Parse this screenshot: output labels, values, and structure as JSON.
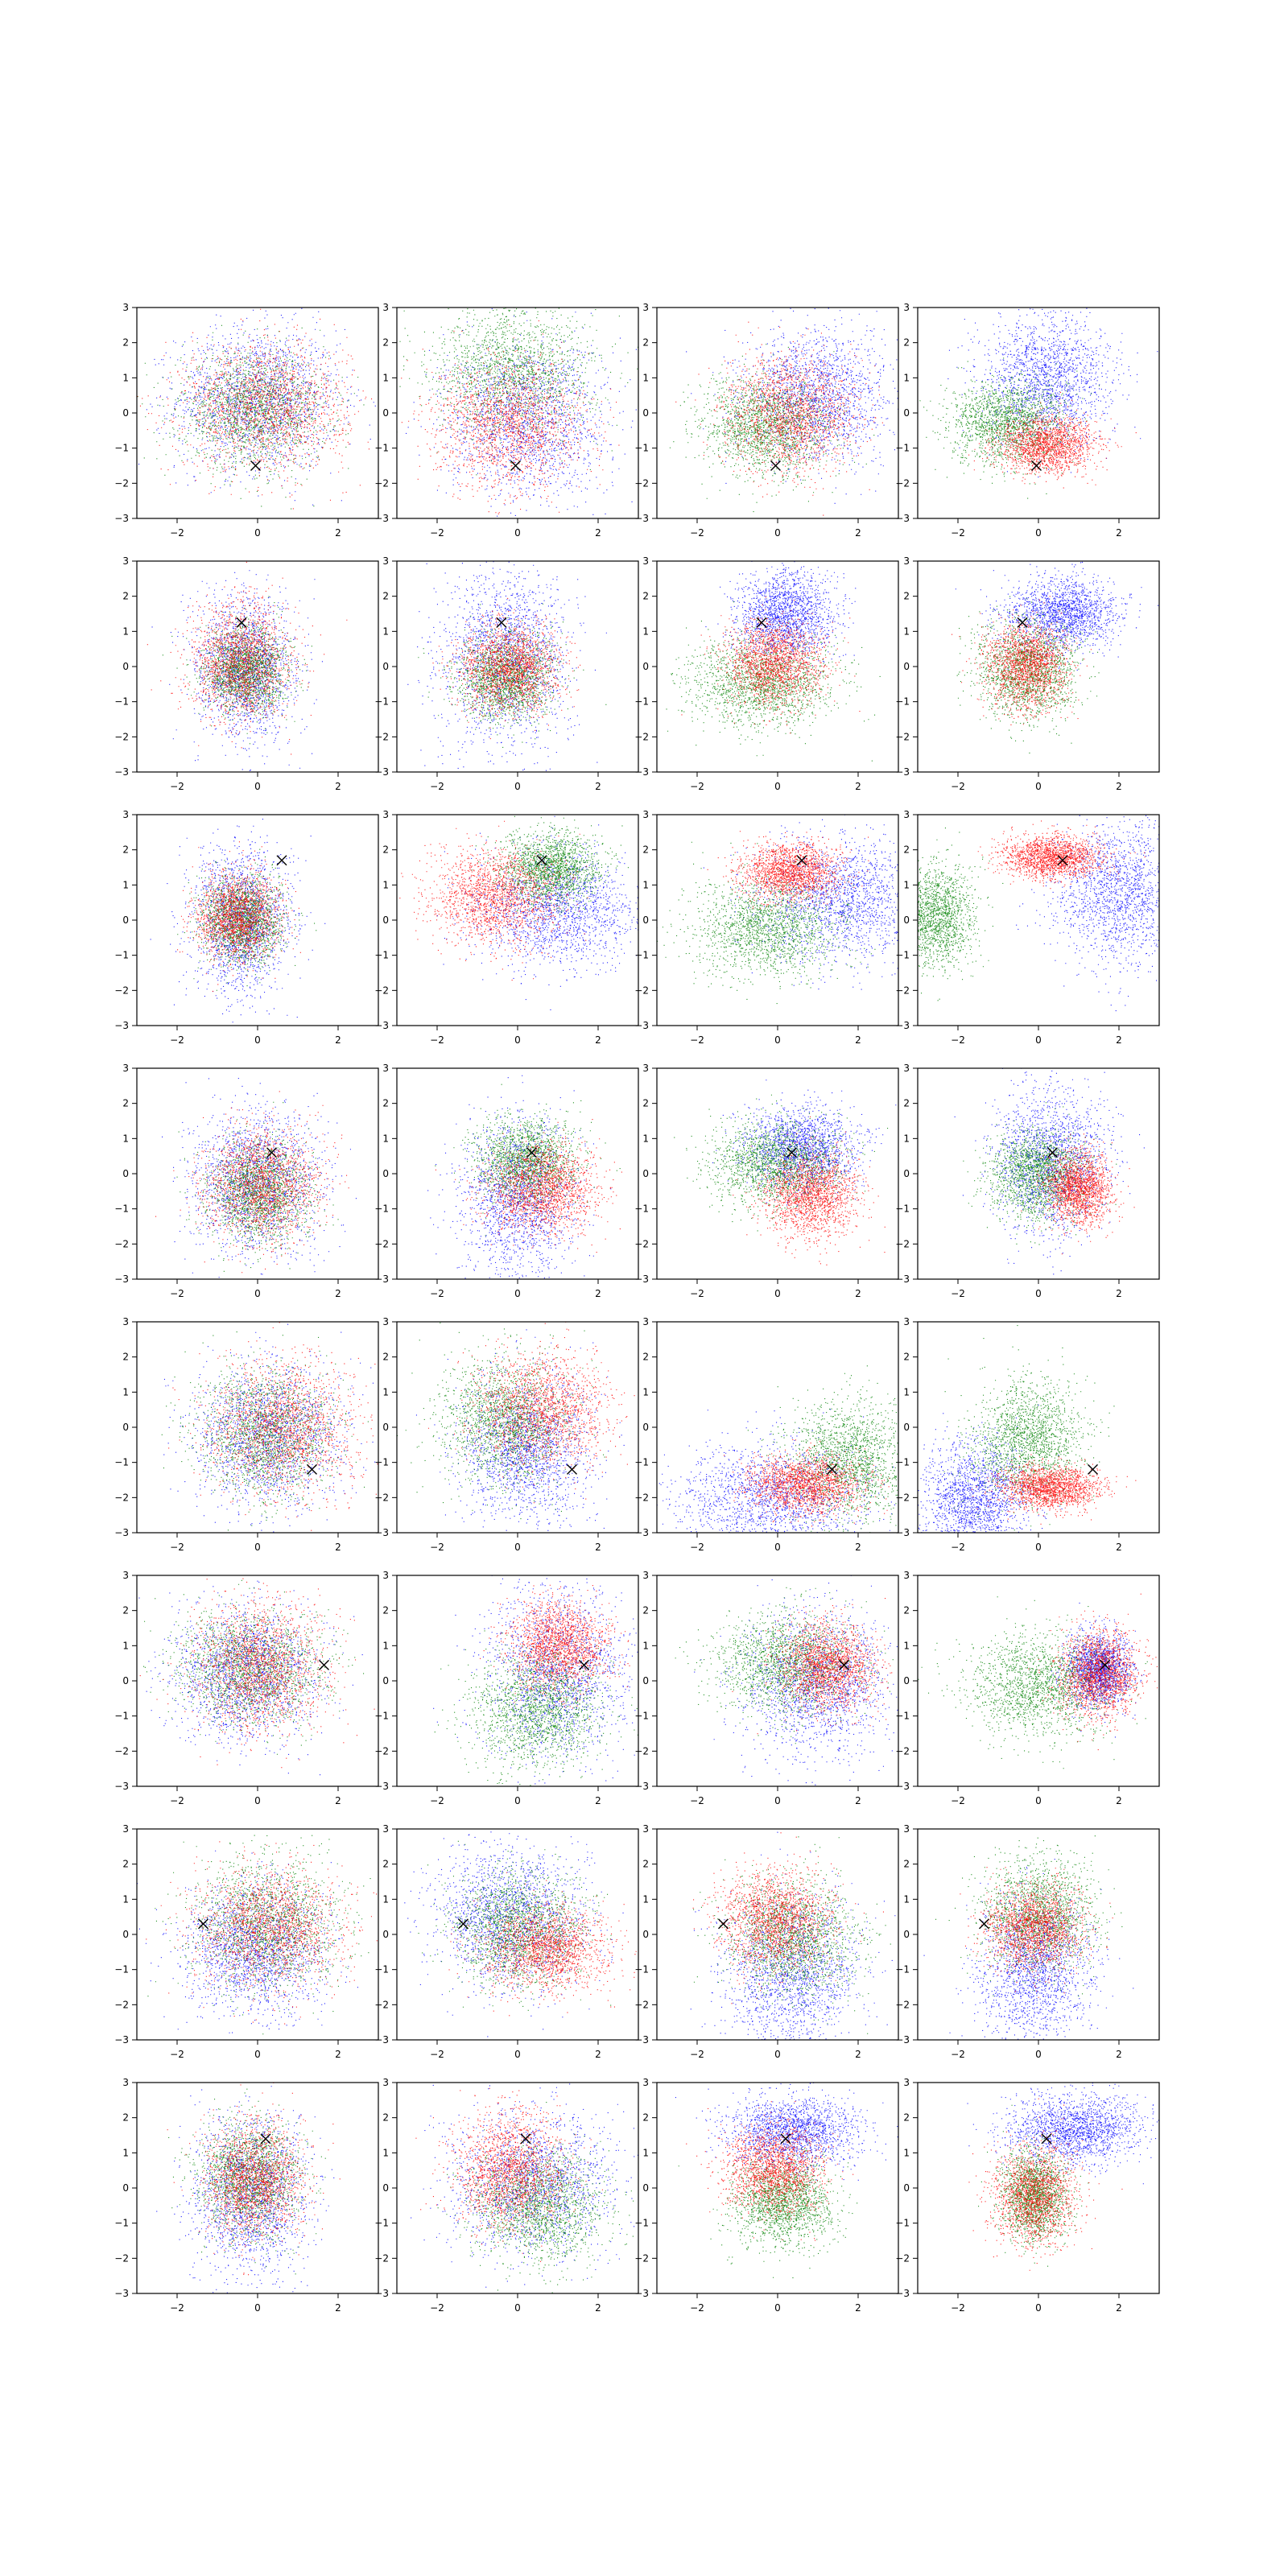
{
  "chart_data": {
    "type": "scatter",
    "layout": {
      "rows": 8,
      "cols": 4
    },
    "title": "",
    "xlabel": "",
    "ylabel": "",
    "grid": false,
    "legend": "none",
    "colors": {
      "blue": "#0000ff",
      "red": "#ff0000",
      "green": "#008000",
      "marker": "#000000"
    },
    "series_names": [
      "blue",
      "red",
      "green"
    ],
    "axes": {
      "xlim": [
        -3,
        3
      ],
      "ylim": [
        -3,
        3
      ],
      "xticks": [
        -2,
        0,
        2
      ],
      "yticks": [
        -3,
        -2,
        -1,
        0,
        1,
        2,
        3
      ],
      "xtick_labels": [
        "−2",
        "0",
        "2"
      ],
      "ytick_labels": [
        "−3",
        "−2",
        "−1",
        "0",
        "1",
        "2",
        "3"
      ]
    },
    "row_markers": [
      {
        "marker": [
          -0.05,
          -1.5
        ]
      },
      {
        "marker": [
          -0.4,
          1.25
        ]
      },
      {
        "marker": [
          0.6,
          1.7
        ]
      },
      {
        "marker": [
          0.35,
          0.6
        ]
      },
      {
        "marker": [
          1.35,
          -1.2
        ]
      },
      {
        "marker": [
          1.65,
          0.45
        ]
      },
      {
        "marker": [
          -1.35,
          0.3
        ]
      },
      {
        "marker": [
          0.2,
          1.4
        ]
      }
    ],
    "panels": [
      [
        {
          "blue": {
            "mean": [
              0.0,
              0.4
            ],
            "sd": [
              1.0,
              1.0
            ]
          },
          "red": {
            "mean": [
              0.2,
              0.2
            ],
            "sd": [
              1.0,
              0.9
            ]
          },
          "green": {
            "mean": [
              -0.1,
              0.1
            ],
            "sd": [
              0.9,
              0.8
            ]
          }
        },
        {
          "blue": {
            "mean": [
              0.2,
              -0.2
            ],
            "sd": [
              1.0,
              1.1
            ]
          },
          "red": {
            "mean": [
              -0.2,
              -0.3
            ],
            "sd": [
              0.9,
              0.9
            ]
          },
          "green": {
            "mean": [
              -0.1,
              1.2
            ],
            "sd": [
              1.0,
              0.9
            ]
          }
        },
        {
          "blue": {
            "mean": [
              1.0,
              0.5
            ],
            "sd": [
              0.9,
              0.9
            ]
          },
          "red": {
            "mean": [
              0.3,
              0.0
            ],
            "sd": [
              0.8,
              0.8
            ]
          },
          "green": {
            "mean": [
              -0.3,
              -0.4
            ],
            "sd": [
              0.8,
              0.7
            ]
          }
        },
        {
          "blue": {
            "mean": [
              0.2,
              1.0
            ],
            "sd": [
              0.8,
              0.9
            ]
          },
          "red": {
            "mean": [
              0.2,
              -0.9
            ],
            "sd": [
              0.6,
              0.4
            ]
          },
          "green": {
            "mean": [
              -0.8,
              -0.3
            ],
            "sd": [
              0.7,
              0.6
            ]
          }
        }
      ],
      [
        {
          "blue": {
            "mean": [
              -0.3,
              0.0
            ],
            "sd": [
              0.6,
              1.0
            ]
          },
          "red": {
            "mean": [
              -0.4,
              0.1
            ],
            "sd": [
              0.6,
              0.8
            ]
          },
          "green": {
            "mean": [
              -0.3,
              -0.1
            ],
            "sd": [
              0.5,
              0.6
            ]
          }
        },
        {
          "blue": {
            "mean": [
              -0.3,
              0.3
            ],
            "sd": [
              0.8,
              1.3
            ]
          },
          "red": {
            "mean": [
              -0.2,
              0.0
            ],
            "sd": [
              0.6,
              0.6
            ]
          },
          "green": {
            "mean": [
              -0.3,
              -0.3
            ],
            "sd": [
              0.6,
              0.6
            ]
          }
        },
        {
          "blue": {
            "mean": [
              0.2,
              1.5
            ],
            "sd": [
              0.6,
              0.6
            ]
          },
          "red": {
            "mean": [
              -0.1,
              0.1
            ],
            "sd": [
              0.6,
              0.6
            ]
          },
          "green": {
            "mean": [
              -0.4,
              -0.5
            ],
            "sd": [
              0.9,
              0.6
            ]
          }
        },
        {
          "blue": {
            "mean": [
              0.6,
              1.5
            ],
            "sd": [
              0.7,
              0.5
            ]
          },
          "red": {
            "mean": [
              -0.3,
              0.0
            ],
            "sd": [
              0.5,
              0.6
            ]
          },
          "green": {
            "mean": [
              -0.3,
              -0.1
            ],
            "sd": [
              0.6,
              0.7
            ]
          }
        }
      ],
      [
        {
          "blue": {
            "mean": [
              -0.4,
              0.0
            ],
            "sd": [
              0.6,
              1.0
            ]
          },
          "red": {
            "mean": [
              -0.5,
              0.1
            ],
            "sd": [
              0.5,
              0.6
            ]
          },
          "green": {
            "mean": [
              -0.4,
              0.0
            ],
            "sd": [
              0.5,
              0.6
            ]
          }
        },
        {
          "blue": {
            "mean": [
              1.0,
              0.3
            ],
            "sd": [
              1.0,
              0.8
            ]
          },
          "red": {
            "mean": [
              -0.6,
              0.7
            ],
            "sd": [
              0.8,
              0.7
            ]
          },
          "green": {
            "mean": [
              0.8,
              1.5
            ],
            "sd": [
              0.6,
              0.5
            ]
          }
        },
        {
          "blue": {
            "mean": [
              1.6,
              0.6
            ],
            "sd": [
              1.0,
              0.9
            ]
          },
          "red": {
            "mean": [
              0.3,
              1.4
            ],
            "sd": [
              0.6,
              0.4
            ]
          },
          "green": {
            "mean": [
              -0.3,
              -0.2
            ],
            "sd": [
              0.9,
              0.7
            ]
          }
        },
        {
          "blue": {
            "mean": [
              2.0,
              0.8
            ],
            "sd": [
              0.8,
              1.0
            ]
          },
          "red": {
            "mean": [
              0.3,
              1.8
            ],
            "sd": [
              0.6,
              0.3
            ]
          },
          "green": {
            "mean": [
              -2.6,
              0.1
            ],
            "sd": [
              0.5,
              0.7
            ]
          }
        }
      ],
      [
        {
          "blue": {
            "mean": [
              0.0,
              -0.2
            ],
            "sd": [
              0.8,
              1.0
            ]
          },
          "red": {
            "mean": [
              0.1,
              -0.3
            ],
            "sd": [
              0.7,
              0.8
            ]
          },
          "green": {
            "mean": [
              0.0,
              -0.5
            ],
            "sd": [
              0.6,
              0.7
            ]
          }
        },
        {
          "blue": {
            "mean": [
              0.0,
              -0.7
            ],
            "sd": [
              0.7,
              1.1
            ]
          },
          "red": {
            "mean": [
              0.6,
              -0.4
            ],
            "sd": [
              0.7,
              0.6
            ]
          },
          "green": {
            "mean": [
              0.2,
              0.4
            ],
            "sd": [
              0.6,
              0.6
            ]
          }
        },
        {
          "blue": {
            "mean": [
              0.6,
              0.7
            ],
            "sd": [
              0.7,
              0.6
            ]
          },
          "red": {
            "mean": [
              0.8,
              -0.6
            ],
            "sd": [
              0.6,
              0.6
            ]
          },
          "green": {
            "mean": [
              -0.1,
              0.3
            ],
            "sd": [
              0.8,
              0.6
            ]
          }
        },
        {
          "blue": {
            "mean": [
              0.3,
              0.4
            ],
            "sd": [
              0.7,
              1.0
            ]
          },
          "red": {
            "mean": [
              1.0,
              -0.4
            ],
            "sd": [
              0.4,
              0.5
            ]
          },
          "green": {
            "mean": [
              0.0,
              0.0
            ],
            "sd": [
              0.6,
              0.6
            ]
          }
        }
      ],
      [
        {
          "blue": {
            "mean": [
              0.3,
              -0.2
            ],
            "sd": [
              0.9,
              1.0
            ]
          },
          "red": {
            "mean": [
              0.6,
              0.0
            ],
            "sd": [
              0.9,
              0.9
            ]
          },
          "green": {
            "mean": [
              0.2,
              -0.1
            ],
            "sd": [
              0.8,
              0.9
            ]
          }
        },
        {
          "blue": {
            "mean": [
              0.2,
              -0.6
            ],
            "sd": [
              0.8,
              1.0
            ]
          },
          "red": {
            "mean": [
              0.6,
              0.5
            ],
            "sd": [
              0.8,
              0.8
            ]
          },
          "green": {
            "mean": [
              -0.3,
              0.2
            ],
            "sd": [
              0.8,
              0.9
            ]
          }
        },
        {
          "blue": {
            "mean": [
              -0.2,
              -2.0
            ],
            "sd": [
              1.2,
              0.8
            ]
          },
          "red": {
            "mean": [
              0.7,
              -1.6
            ],
            "sd": [
              0.7,
              0.4
            ]
          },
          "green": {
            "mean": [
              1.8,
              -0.9
            ],
            "sd": [
              0.8,
              0.8
            ]
          }
        },
        {
          "blue": {
            "mean": [
              -1.6,
              -2.0
            ],
            "sd": [
              0.7,
              0.8
            ]
          },
          "red": {
            "mean": [
              0.3,
              -1.7
            ],
            "sd": [
              0.6,
              0.3
            ]
          },
          "green": {
            "mean": [
              -0.3,
              -0.3
            ],
            "sd": [
              0.7,
              0.8
            ]
          }
        }
      ],
      [
        {
          "blue": {
            "mean": [
              -0.3,
              0.2
            ],
            "sd": [
              0.9,
              0.9
            ]
          },
          "red": {
            "mean": [
              0.0,
              0.4
            ],
            "sd": [
              0.8,
              0.9
            ]
          },
          "green": {
            "mean": [
              -0.2,
              0.4
            ],
            "sd": [
              0.9,
              0.8
            ]
          }
        },
        {
          "blue": {
            "mean": [
              1.0,
              0.3
            ],
            "sd": [
              0.9,
              1.2
            ]
          },
          "red": {
            "mean": [
              1.0,
              1.0
            ],
            "sd": [
              0.6,
              0.6
            ]
          },
          "green": {
            "mean": [
              0.5,
              -0.8
            ],
            "sd": [
              0.8,
              0.8
            ]
          }
        },
        {
          "blue": {
            "mean": [
              1.0,
              -0.1
            ],
            "sd": [
              0.9,
              1.0
            ]
          },
          "red": {
            "mean": [
              1.2,
              0.4
            ],
            "sd": [
              0.6,
              0.6
            ]
          },
          "green": {
            "mean": [
              0.2,
              0.5
            ],
            "sd": [
              0.9,
              0.7
            ]
          }
        },
        {
          "blue": {
            "mean": [
              1.5,
              0.3
            ],
            "sd": [
              0.4,
              0.5
            ]
          },
          "red": {
            "mean": [
              1.5,
              0.2
            ],
            "sd": [
              0.5,
              0.6
            ]
          },
          "green": {
            "mean": [
              0.0,
              -0.1
            ],
            "sd": [
              0.9,
              0.7
            ]
          }
        }
      ],
      [
        {
          "blue": {
            "mean": [
              -0.1,
              -0.4
            ],
            "sd": [
              0.9,
              0.9
            ]
          },
          "red": {
            "mean": [
              0.3,
              0.2
            ],
            "sd": [
              0.9,
              0.8
            ]
          },
          "green": {
            "mean": [
              0.2,
              0.3
            ],
            "sd": [
              0.9,
              0.9
            ]
          }
        },
        {
          "blue": {
            "mean": [
              -0.2,
              0.5
            ],
            "sd": [
              0.9,
              1.0
            ]
          },
          "red": {
            "mean": [
              0.7,
              -0.4
            ],
            "sd": [
              0.8,
              0.6
            ]
          },
          "green": {
            "mean": [
              0.0,
              0.2
            ],
            "sd": [
              0.8,
              0.8
            ]
          }
        },
        {
          "blue": {
            "mean": [
              0.3,
              -1.2
            ],
            "sd": [
              0.8,
              1.1
            ]
          },
          "red": {
            "mean": [
              -0.1,
              0.4
            ],
            "sd": [
              0.7,
              0.7
            ]
          },
          "green": {
            "mean": [
              0.4,
              -0.1
            ],
            "sd": [
              0.8,
              0.8
            ]
          }
        },
        {
          "blue": {
            "mean": [
              -0.1,
              -1.0
            ],
            "sd": [
              0.7,
              1.0
            ]
          },
          "red": {
            "mean": [
              -0.1,
              0.2
            ],
            "sd": [
              0.6,
              0.6
            ]
          },
          "green": {
            "mean": [
              0.0,
              0.6
            ],
            "sd": [
              0.7,
              0.8
            ]
          }
        }
      ],
      [
        {
          "blue": {
            "mean": [
              -0.2,
              -0.2
            ],
            "sd": [
              0.7,
              1.1
            ]
          },
          "red": {
            "mean": [
              -0.1,
              0.2
            ],
            "sd": [
              0.6,
              0.8
            ]
          },
          "green": {
            "mean": [
              -0.2,
              0.3
            ],
            "sd": [
              0.6,
              0.8
            ]
          }
        },
        {
          "blue": {
            "mean": [
              0.4,
              0.2
            ],
            "sd": [
              1.0,
              1.0
            ]
          },
          "red": {
            "mean": [
              -0.2,
              0.5
            ],
            "sd": [
              0.7,
              0.8
            ]
          },
          "green": {
            "mean": [
              0.5,
              -0.5
            ],
            "sd": [
              0.8,
              0.8
            ]
          }
        },
        {
          "blue": {
            "mean": [
              0.4,
              1.6
            ],
            "sd": [
              0.8,
              0.5
            ]
          },
          "red": {
            "mean": [
              -0.1,
              0.5
            ],
            "sd": [
              0.6,
              0.6
            ]
          },
          "green": {
            "mean": [
              0.1,
              -0.4
            ],
            "sd": [
              0.6,
              0.6
            ]
          }
        },
        {
          "blue": {
            "mean": [
              0.9,
              1.7
            ],
            "sd": [
              0.8,
              0.5
            ]
          },
          "red": {
            "mean": [
              -0.1,
              -0.2
            ],
            "sd": [
              0.5,
              0.7
            ]
          },
          "green": {
            "mean": [
              -0.1,
              -0.2
            ],
            "sd": [
              0.4,
              0.6
            ]
          }
        }
      ]
    ]
  }
}
